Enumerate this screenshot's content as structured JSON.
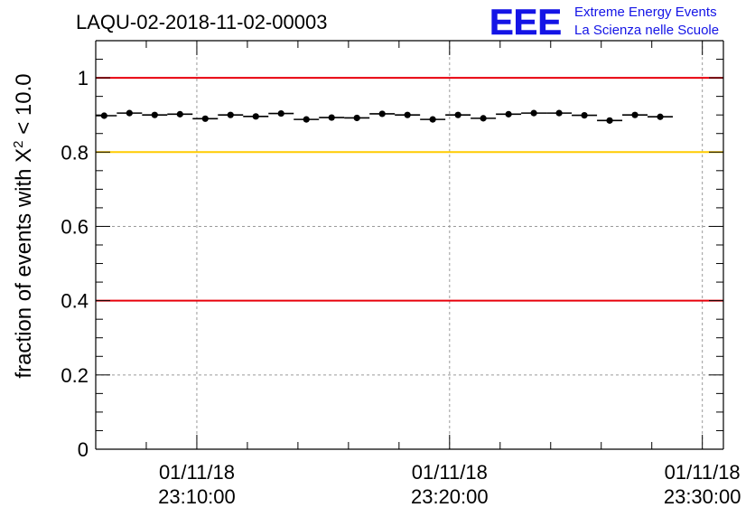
{
  "chart_data": {
    "type": "scatter",
    "title": "LAQU-02-2018-11-02-00003",
    "ylabel_prefix": "fraction of events with ",
    "ylabel_symbol": "X",
    "ylabel_sup": "2",
    "ylabel_suffix": " < 10.0",
    "ylim": [
      0,
      1.1
    ],
    "yticks": [
      0,
      0.2,
      0.4,
      0.6,
      0.8,
      1
    ],
    "ytick_labels": [
      "0",
      "0.2",
      "0.4",
      "0.6",
      "0.8",
      "1"
    ],
    "xlim": [
      "2018-11-01 23:06:00",
      "2018-11-01 23:30:50"
    ],
    "xticks": [
      {
        "x": "2018-11-01 23:10:00",
        "date": "01/11/18",
        "time": "23:10:00"
      },
      {
        "x": "2018-11-01 23:20:00",
        "date": "01/11/18",
        "time": "23:20:00"
      },
      {
        "x": "2018-11-01 23:30:00",
        "date": "01/11/18",
        "time": "23:30:00"
      }
    ],
    "grid": true,
    "reference_lines": [
      {
        "y": 1.0,
        "color": "#e8000b"
      },
      {
        "y": 0.8,
        "color": "#ffcc00"
      },
      {
        "y": 0.4,
        "color": "#e8000b"
      }
    ],
    "series": [
      {
        "color": "#000000",
        "points": [
          {
            "x": "2018-11-01 23:06:20",
            "y": 0.898
          },
          {
            "x": "2018-11-01 23:07:20",
            "y": 0.905
          },
          {
            "x": "2018-11-01 23:08:20",
            "y": 0.9
          },
          {
            "x": "2018-11-01 23:09:20",
            "y": 0.902
          },
          {
            "x": "2018-11-01 23:10:20",
            "y": 0.89
          },
          {
            "x": "2018-11-01 23:11:20",
            "y": 0.9
          },
          {
            "x": "2018-11-01 23:12:20",
            "y": 0.896
          },
          {
            "x": "2018-11-01 23:13:20",
            "y": 0.904
          },
          {
            "x": "2018-11-01 23:14:20",
            "y": 0.888
          },
          {
            "x": "2018-11-01 23:15:20",
            "y": 0.893
          },
          {
            "x": "2018-11-01 23:16:20",
            "y": 0.892
          },
          {
            "x": "2018-11-01 23:17:20",
            "y": 0.903
          },
          {
            "x": "2018-11-01 23:18:20",
            "y": 0.9
          },
          {
            "x": "2018-11-01 23:19:20",
            "y": 0.888
          },
          {
            "x": "2018-11-01 23:20:20",
            "y": 0.9
          },
          {
            "x": "2018-11-01 23:21:20",
            "y": 0.891
          },
          {
            "x": "2018-11-01 23:22:20",
            "y": 0.902
          },
          {
            "x": "2018-11-01 23:23:20",
            "y": 0.905
          },
          {
            "x": "2018-11-01 23:24:20",
            "y": 0.905
          },
          {
            "x": "2018-11-01 23:25:20",
            "y": 0.899
          },
          {
            "x": "2018-11-01 23:26:20",
            "y": 0.885
          },
          {
            "x": "2018-11-01 23:27:20",
            "y": 0.9
          },
          {
            "x": "2018-11-01 23:28:20",
            "y": 0.895
          }
        ]
      }
    ]
  },
  "logo": {
    "letters": "EEE",
    "line1": "Extreme Energy Events",
    "line2": "La Scienza nelle Scuole",
    "color": "#1414e6"
  }
}
